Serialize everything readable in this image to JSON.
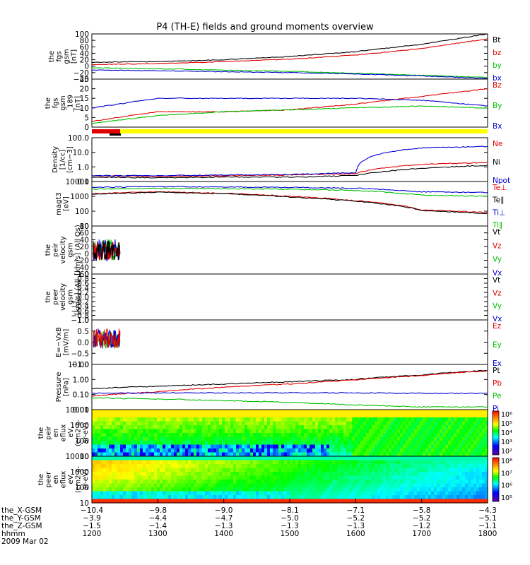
{
  "title": "P4 (TH-E) fields and ground moments overview",
  "colors": {
    "black": "#000000",
    "red": "#e00000",
    "green": "#00c000",
    "blue": "#0000d0",
    "yellow": "#ffff00"
  },
  "panels": [
    {
      "id": "fgs_gsm",
      "ylabel": [
        "the",
        "fgs",
        "gsm",
        "[nT]"
      ],
      "ticks": [
        "100",
        "80",
        "60",
        "40",
        "20",
        "0",
        "−20",
        "−40"
      ],
      "legend": [
        {
          "label": "Bt",
          "color": "black"
        },
        {
          "label": "bz",
          "color": "red"
        },
        {
          "label": "by",
          "color": "green"
        },
        {
          "label": "bx",
          "color": "blue"
        }
      ]
    },
    {
      "id": "fgs_fac",
      "ylabel": [
        "the",
        "fgs",
        "gsm",
        "_189",
        "[nT]"
      ],
      "ticks": [
        "25",
        "20",
        "15",
        "10",
        "5",
        "0"
      ],
      "legend": [
        {
          "label": "Bz",
          "color": "red"
        },
        {
          "label": "By",
          "color": "green"
        },
        {
          "label": "Bx",
          "color": "blue"
        }
      ]
    },
    {
      "id": "density",
      "ylabel": [
        "Density",
        "[1/cc]",
        "[cm−3]"
      ],
      "ticks": [
        "100.0",
        "10.0",
        "1.0",
        "0.1"
      ],
      "legend": [
        {
          "label": "Ne",
          "color": "red"
        },
        {
          "label": "Ni",
          "color": "black"
        },
        {
          "label": "Npot",
          "color": "blue"
        }
      ]
    },
    {
      "id": "temperature",
      "ylabel": [
        "magt3",
        "[eV]"
      ],
      "ticks": [
        "10000",
        "1000",
        "100",
        "10"
      ],
      "legend": [
        {
          "label": "Te⊥",
          "color": "red"
        },
        {
          "label": "Te∥",
          "color": "black"
        },
        {
          "label": "Ti⊥",
          "color": "blue"
        },
        {
          "label": "Ti∥",
          "color": "green"
        }
      ]
    },
    {
      "id": "peir_velocity",
      "ylabel": [
        "the",
        "peir",
        "velocity",
        "gsm",
        "[km/s] (All Qs)"
      ],
      "ticks": [
        "80",
        "60",
        "40",
        "20",
        "0",
        "−20",
        "−40",
        "−60"
      ],
      "legend": [
        {
          "label": "Vt",
          "color": "black"
        },
        {
          "label": "Vz",
          "color": "red"
        },
        {
          "label": "Vy",
          "color": "green"
        },
        {
          "label": "Vx",
          "color": "blue"
        }
      ]
    },
    {
      "id": "peer_velocity",
      "ylabel": [
        "the",
        "peer",
        "velocity",
        "gsm",
        "[km/s] (All"
      ],
      "ticks": [
        "1.0",
        "0.8",
        "0.6",
        "0.4",
        "0.2",
        "0.0",
        "−0.2",
        "−0.4",
        "−0.6",
        "−0.8",
        "−1.0"
      ],
      "legend": [
        {
          "label": "Vt",
          "color": "black"
        },
        {
          "label": "Vz",
          "color": "red"
        },
        {
          "label": "Vy",
          "color": "green"
        },
        {
          "label": "Vx",
          "color": "blue"
        }
      ]
    },
    {
      "id": "efield",
      "ylabel": [
        "E=−VxB",
        "[mV/m]"
      ],
      "ticks": [
        "1.0",
        "0.5",
        "0.0",
        "−0.5",
        "−1.0"
      ],
      "legend": [
        {
          "label": "Ez",
          "color": "red"
        },
        {
          "label": "Ey",
          "color": "green"
        },
        {
          "label": "Ex",
          "color": "blue"
        }
      ]
    },
    {
      "id": "pressure",
      "ylabel": [
        "Pressure",
        "[nPa]"
      ],
      "ticks": [
        "10.00",
        "1.00",
        "0.10",
        "0.01"
      ],
      "legend": [
        {
          "label": "Pt",
          "color": "black"
        },
        {
          "label": "Pb",
          "color": "red"
        },
        {
          "label": "Pe",
          "color": "green"
        },
        {
          "label": "Pi",
          "color": "blue"
        }
      ]
    },
    {
      "id": "peir_spec",
      "ylabel": [
        "the",
        "peir",
        "en",
        "eflux",
        "eV",
        "(cm2-s-",
        "sr-eV)"
      ],
      "ticks": [
        "10000",
        "1000",
        "100",
        "10"
      ],
      "colorbar": [
        "10⁶",
        "10⁵",
        "10⁴",
        "10³",
        "10²"
      ]
    },
    {
      "id": "peer_spec",
      "ylabel": [
        "the",
        "peer",
        "en",
        "eflux",
        "eV",
        "(cm2-s-",
        "sr-eV)"
      ],
      "ticks": [
        "10000",
        "1000",
        "100",
        "10"
      ],
      "colorbar": [
        "10⁸",
        "10⁷",
        "10⁶",
        "10⁵"
      ]
    }
  ],
  "xaxis": {
    "rows": [
      {
        "label": "the_X-GSM",
        "values": [
          "−10.4",
          "−9.8",
          "−9.0",
          "−8.1",
          "−7.1",
          "−5.8",
          "−4.3"
        ]
      },
      {
        "label": "the_Y-GSM",
        "values": [
          "−3.9",
          "−4.4",
          "−4.7",
          "−5.0",
          "−5.2",
          "−5.2",
          "−5.1"
        ]
      },
      {
        "label": "the_Z-GSM",
        "values": [
          "−1.5",
          "−1.4",
          "−1.3",
          "−1.3",
          "−1.3",
          "−1.2",
          "−1.1"
        ]
      },
      {
        "label": "hhmm",
        "values": [
          "1200",
          "1300",
          "1400",
          "1500",
          "1600",
          "1700",
          "1800"
        ]
      }
    ],
    "date": "2009 Mar 02"
  },
  "chart_data": [
    {
      "type": "line",
      "panel": "fgs_gsm",
      "x": [
        "1200",
        "1300",
        "1400",
        "1500",
        "1600",
        "1700",
        "1800"
      ],
      "ylim": [
        -40,
        100
      ],
      "series": [
        {
          "name": "Bt",
          "values": [
            12,
            14,
            20,
            30,
            45,
            68,
            100
          ]
        },
        {
          "name": "bz",
          "values": [
            5,
            8,
            14,
            22,
            34,
            55,
            85
          ]
        },
        {
          "name": "by",
          "values": [
            -5,
            -8,
            -12,
            -16,
            -22,
            -28,
            -35
          ]
        },
        {
          "name": "bx",
          "values": [
            -12,
            -14,
            -17,
            -20,
            -24,
            -30,
            -38
          ]
        }
      ]
    },
    {
      "type": "line",
      "panel": "fgs_fac",
      "x": [
        "1200",
        "1300",
        "1400",
        "1500",
        "1600",
        "1700",
        "1800"
      ],
      "ylim": [
        0,
        25
      ],
      "series": [
        {
          "name": "Bz",
          "values": [
            3,
            8,
            8,
            9,
            12,
            16,
            20
          ]
        },
        {
          "name": "By",
          "values": [
            2,
            6,
            8,
            9,
            10,
            11,
            10
          ]
        },
        {
          "name": "Bx",
          "values": [
            10,
            15,
            15,
            15,
            15,
            14,
            11
          ]
        }
      ]
    },
    {
      "type": "line",
      "panel": "density",
      "log": true,
      "x": [
        "1200",
        "1300",
        "1400",
        "1500",
        "1600",
        "1700",
        "1800"
      ],
      "ylim": [
        0.1,
        100
      ],
      "series": [
        {
          "name": "Ne",
          "values": [
            0.25,
            0.22,
            0.25,
            0.28,
            0.35,
            1.5,
            2.0
          ]
        },
        {
          "name": "Ni",
          "values": [
            0.2,
            0.18,
            0.2,
            0.2,
            0.25,
            0.8,
            1.3
          ]
        },
        {
          "name": "Npot",
          "values": [
            0.25,
            0.25,
            0.28,
            0.3,
            0.4,
            20,
            25
          ]
        }
      ]
    },
    {
      "type": "line",
      "panel": "temperature",
      "log": true,
      "x": [
        "1200",
        "1300",
        "1400",
        "1500",
        "1600",
        "1700",
        "1800"
      ],
      "ylim": [
        10,
        10000
      ],
      "series": [
        {
          "name": "Te⊥",
          "values": [
            1500,
            2000,
            1600,
            1000,
            500,
            120,
            80
          ]
        },
        {
          "name": "Te∥",
          "values": [
            1400,
            1900,
            1500,
            900,
            450,
            110,
            70
          ]
        },
        {
          "name": "Ti⊥",
          "values": [
            4000,
            4500,
            4300,
            4000,
            3500,
            2000,
            1800
          ]
        },
        {
          "name": "Ti∥",
          "values": [
            3000,
            3500,
            3300,
            3000,
            2500,
            1200,
            1000
          ]
        }
      ]
    },
    {
      "type": "line",
      "panel": "pressure",
      "log": true,
      "x": [
        "1200",
        "1300",
        "1400",
        "1500",
        "1600",
        "1700",
        "1800"
      ],
      "ylim": [
        0.01,
        10
      ],
      "series": [
        {
          "name": "Pt",
          "values": [
            0.25,
            0.35,
            0.5,
            0.7,
            1.0,
            2.0,
            4.0
          ]
        },
        {
          "name": "Pb",
          "values": [
            0.08,
            0.15,
            0.3,
            0.5,
            0.9,
            1.8,
            3.8
          ]
        },
        {
          "name": "Pe",
          "values": [
            0.06,
            0.05,
            0.04,
            0.03,
            0.02,
            0.015,
            0.015
          ]
        },
        {
          "name": "Pi",
          "values": [
            0.12,
            0.13,
            0.13,
            0.13,
            0.13,
            0.12,
            0.12
          ]
        }
      ]
    }
  ]
}
